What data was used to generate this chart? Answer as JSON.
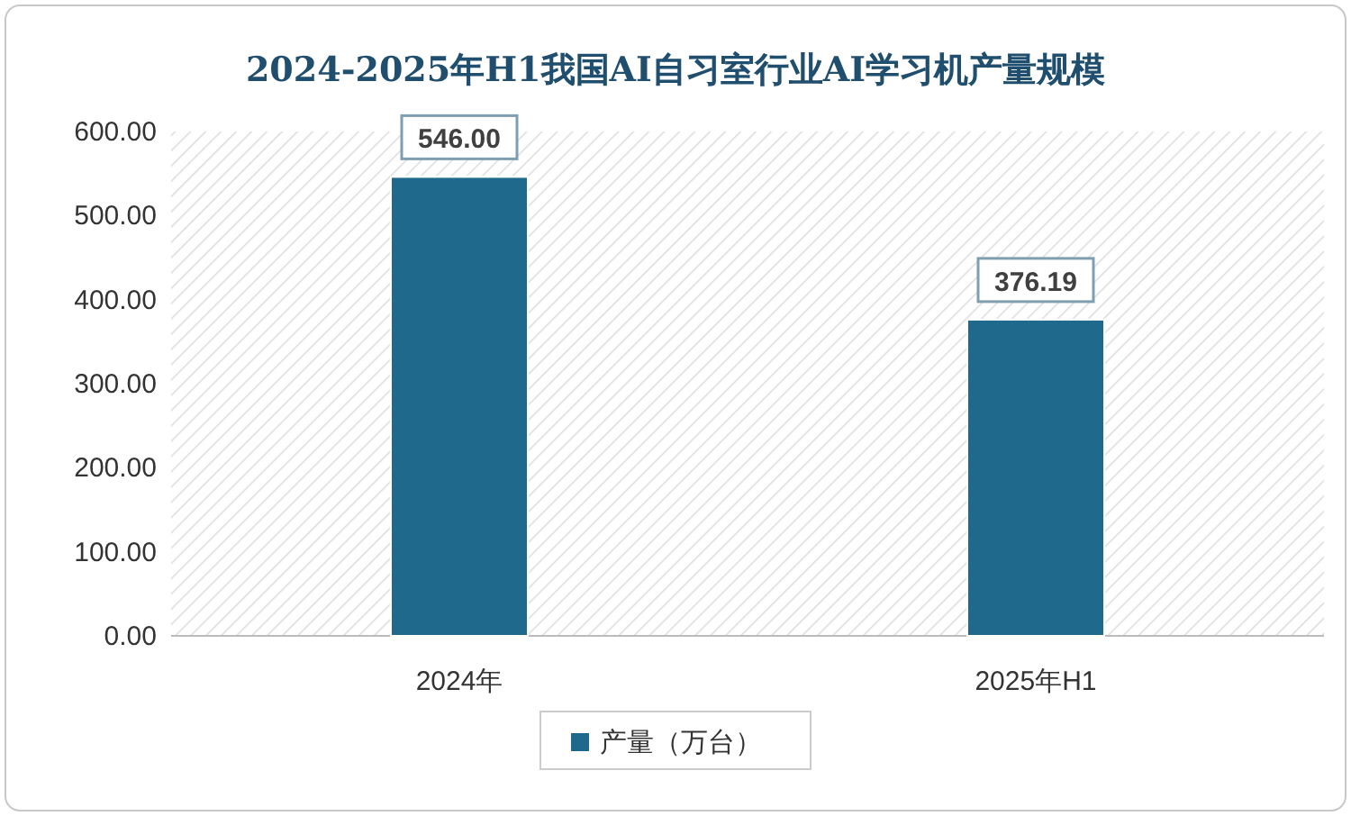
{
  "chart_data": {
    "type": "bar",
    "title": "2024-2025年H1我国AI自习室行业AI学习机产量规模",
    "categories": [
      "2024年",
      "2025年H1"
    ],
    "series": [
      {
        "name": "产量（万台）",
        "color": "#1f6a8c",
        "values": [
          546.0,
          376.19
        ],
        "value_labels": [
          "546.00",
          "376.19"
        ]
      }
    ],
    "ylim": [
      0,
      600
    ],
    "yticks": [
      {
        "value": 0,
        "label": "0.00"
      },
      {
        "value": 100,
        "label": "100.00"
      },
      {
        "value": 200,
        "label": "200.00"
      },
      {
        "value": 300,
        "label": "300.00"
      },
      {
        "value": 400,
        "label": "400.00"
      },
      {
        "value": 500,
        "label": "500.00"
      },
      {
        "value": 600,
        "label": "600.00"
      }
    ],
    "legend": "bottom",
    "grid": false
  }
}
